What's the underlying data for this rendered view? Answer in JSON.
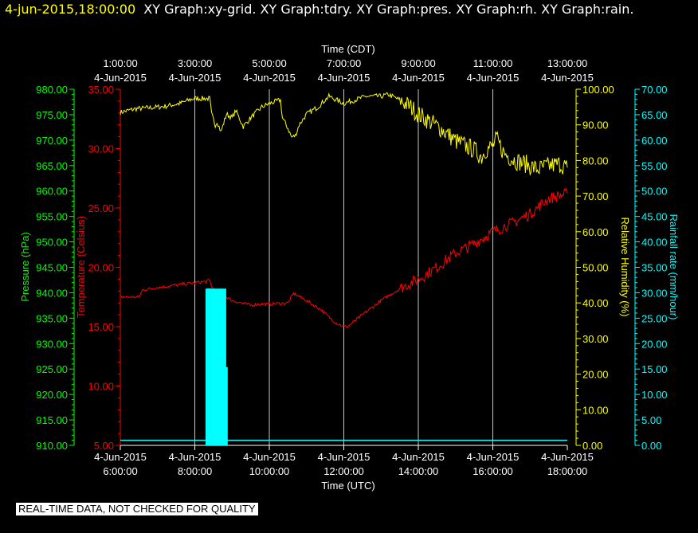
{
  "header": {
    "timestamp": "4-jun-2015,18:00:00",
    "graphs": "XY Graph:xy-grid.  XY Graph:tdry.  XY Graph:pres.  XY Graph:rh.  XY Graph:rain."
  },
  "footer": {
    "note": "REAL-TIME DATA, NOT CHECKED FOR QUALITY"
  },
  "colors": {
    "pressure": "#00ff00",
    "temperature": "#ff0000",
    "humidity": "#ffff00",
    "rain": "#00ffff",
    "grid": "#ffffff"
  },
  "chart_data": {
    "type": "line",
    "x_bottom": {
      "title": "Time (UTC)",
      "ticks": [
        {
          "t": 6,
          "date": "4-Jun-2015",
          "time": "6:00:00"
        },
        {
          "t": 8,
          "date": "4-Jun-2015",
          "time": "8:00:00"
        },
        {
          "t": 10,
          "date": "4-Jun-2015",
          "time": "10:00:00"
        },
        {
          "t": 12,
          "date": "4-Jun-2015",
          "time": "12:00:00"
        },
        {
          "t": 14,
          "date": "4-Jun-2015",
          "time": "14:00:00"
        },
        {
          "t": 16,
          "date": "4-Jun-2015",
          "time": "16:00:00"
        },
        {
          "t": 18,
          "date": "4-Jun-2015",
          "time": "18:00:00"
        }
      ],
      "range": [
        6,
        18
      ]
    },
    "x_top": {
      "title": "Time (CDT)",
      "ticks": [
        {
          "t": 6,
          "time": "1:00:00",
          "date": "4-Jun-2015"
        },
        {
          "t": 8,
          "time": "3:00:00",
          "date": "4-Jun-2015"
        },
        {
          "t": 10,
          "time": "5:00:00",
          "date": "4-Jun-2015"
        },
        {
          "t": 12,
          "time": "7:00:00",
          "date": "4-Jun-2015"
        },
        {
          "t": 14,
          "time": "9:00:00",
          "date": "4-Jun-2015"
        },
        {
          "t": 16,
          "time": "11:00:00",
          "date": "4-Jun-2015"
        },
        {
          "t": 18,
          "time": "13:00:00",
          "date": "4-Jun-2015"
        }
      ]
    },
    "y_pressure": {
      "title": "Pressure (hPa)",
      "range": [
        910,
        980
      ],
      "ticks": [
        "910.00",
        "915.00",
        "920.00",
        "925.00",
        "930.00",
        "935.00",
        "940.00",
        "945.00",
        "950.00",
        "955.00",
        "960.00",
        "965.00",
        "970.00",
        "975.00",
        "980.00"
      ]
    },
    "y_temperature": {
      "title": "Temperature (Celsius)",
      "range": [
        5,
        35
      ],
      "ticks": [
        "5.00",
        "10.00",
        "15.00",
        "20.00",
        "25.00",
        "30.00",
        "35.00"
      ]
    },
    "y_humidity": {
      "title": "Relative Humidity (%)",
      "range": [
        0,
        100
      ],
      "ticks": [
        "0.00",
        "10.00",
        "20.00",
        "30.00",
        "40.00",
        "50.00",
        "60.00",
        "70.00",
        "80.00",
        "90.00",
        "100.00"
      ]
    },
    "y_rain": {
      "title": "Rainfall rate (mm/hour)",
      "range": [
        0,
        70
      ],
      "ticks": [
        "0.00",
        "5.00",
        "10.00",
        "15.00",
        "20.00",
        "25.00",
        "30.00",
        "35.00",
        "40.00",
        "45.00",
        "50.00",
        "55.00",
        "60.00",
        "65.00",
        "70.00"
      ]
    },
    "series": [
      {
        "name": "Relative Humidity (%)",
        "axis": "humidity",
        "t": [
          6.0,
          6.4,
          6.8,
          7.2,
          7.6,
          7.9,
          8.0,
          8.4,
          8.45,
          8.55,
          8.6,
          8.7,
          8.85,
          9.0,
          9.1,
          9.3,
          9.5,
          9.8,
          10.0,
          10.3,
          10.35,
          10.5,
          10.6,
          10.7,
          10.8,
          11.0,
          11.3,
          11.6,
          11.8,
          12.0,
          12.3,
          12.6,
          13.0,
          13.2,
          13.5,
          13.8,
          14.0,
          14.3,
          14.6,
          15.0,
          15.3,
          15.5,
          15.7,
          15.8,
          16.0,
          16.1,
          16.3,
          16.6,
          16.9,
          17.2,
          17.5,
          17.8,
          18.0
        ],
        "v": [
          93.5,
          94.5,
          94.8,
          95.2,
          96.0,
          97.2,
          97.4,
          97.4,
          93,
          90,
          91,
          88,
          93,
          92,
          94,
          89.5,
          92,
          95,
          96,
          97,
          92,
          89,
          86.5,
          87,
          90,
          93,
          95,
          98,
          97,
          96,
          97,
          98,
          98,
          98.5,
          97,
          95,
          93,
          91,
          89,
          85.5,
          84,
          83,
          81,
          83,
          84,
          86,
          82,
          80,
          79,
          77.5,
          78.5,
          79,
          78
        ]
      },
      {
        "name": "Temperature (Celsius)",
        "axis": "temperature",
        "t": [
          6.0,
          6.5,
          6.6,
          7.0,
          7.5,
          8.0,
          8.3,
          8.4,
          8.45,
          8.55,
          8.7,
          9.0,
          9.5,
          9.7,
          10.0,
          10.5,
          10.65,
          11.0,
          11.4,
          11.6,
          11.8,
          12.0,
          12.1,
          12.5,
          13.0,
          13.5,
          14.0,
          14.5,
          15.0,
          15.5,
          16.0,
          16.5,
          17.0,
          17.5,
          18.0
        ],
        "v": [
          17.5,
          17.5,
          18.1,
          18.3,
          18.5,
          18.7,
          18.8,
          18.9,
          18.4,
          18.0,
          17.8,
          17.2,
          16.8,
          16.9,
          16.9,
          17.0,
          17.8,
          17.2,
          16.4,
          15.8,
          15.3,
          15.0,
          15.0,
          16.0,
          17.2,
          18.2,
          19.0,
          20.0,
          21.2,
          22.0,
          23.0,
          23.7,
          24.5,
          25.8,
          26.2
        ]
      },
      {
        "name": "Rainfall rate (mm/hour)",
        "axis": "rain",
        "baseline": 1.0,
        "bars": [
          {
            "t": 8.35,
            "v": 30.8
          },
          {
            "t": 8.38,
            "v": 30.8
          },
          {
            "t": 8.41,
            "v": 30.8
          },
          {
            "t": 8.44,
            "v": 30.8
          },
          {
            "t": 8.47,
            "v": 15.4
          },
          {
            "t": 8.5,
            "v": 30.8
          },
          {
            "t": 8.53,
            "v": 15.4
          },
          {
            "t": 8.56,
            "v": 30.8
          },
          {
            "t": 8.59,
            "v": 15.4
          },
          {
            "t": 8.62,
            "v": 15.4
          },
          {
            "t": 8.65,
            "v": 30.8
          },
          {
            "t": 8.68,
            "v": 15.4
          },
          {
            "t": 8.71,
            "v": 30.8
          },
          {
            "t": 8.74,
            "v": 15.4
          },
          {
            "t": 8.77,
            "v": 15.4
          },
          {
            "t": 8.8,
            "v": 30.8
          },
          {
            "t": 8.84,
            "v": 15.4
          }
        ]
      }
    ]
  }
}
